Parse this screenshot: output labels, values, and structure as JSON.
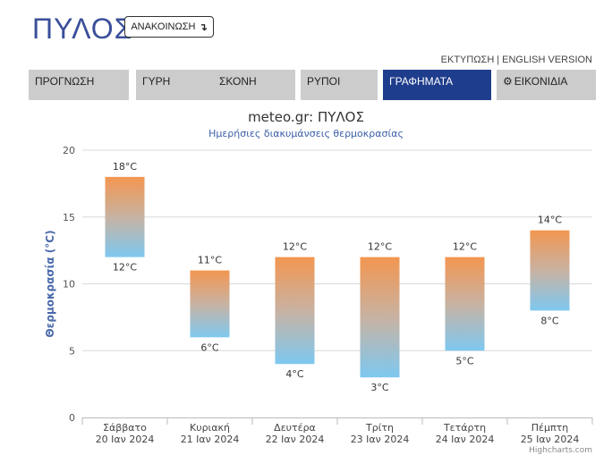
{
  "header": {
    "city": "ΠΥΛΟΣ",
    "announce_label": "ΑΝΑΚΟΙΝΩΣΗ",
    "announce_icon": "arrow-down-icon",
    "print_link": "ΕΚΤΥΠΩΣΗ",
    "separator": "|",
    "english_link": "ENGLISH VERSION"
  },
  "tabs": [
    {
      "label": "ΠΡΟΓΝΩΣΗ",
      "active": false
    },
    {
      "label": "ΓΥΡΗ",
      "active": false
    },
    {
      "label": "ΣΚΟΝΗ",
      "active": false
    },
    {
      "label": "ΡΥΠΟΙ",
      "active": false
    },
    {
      "label": "ΓΡΑΦΗΜΑΤΑ",
      "active": true
    },
    {
      "label": "ΕΙΚΟΝΙΔΙΑ",
      "active": false,
      "icon": "gear-icon"
    }
  ],
  "colors": {
    "accent": "#1e3d8c",
    "tab_bg": "#cccccc",
    "bar_top": "#f39650",
    "bar_bottom": "#7ec8f0"
  },
  "chart_data": {
    "type": "columnrange",
    "title": "meteo.gr: ΠΥΛΟΣ",
    "subtitle": "Ημερήσιες διακυμάνσεις θερμοκρασίας",
    "ylabel": "Θερμοκρασία (°C)",
    "ylim": [
      0,
      20
    ],
    "yticks": [
      "0",
      "5",
      "10",
      "15",
      "20"
    ],
    "grid": true,
    "unit": "°C",
    "categories": [
      {
        "day": "Σάββατο",
        "date": "20 Ιαν 2024"
      },
      {
        "day": "Κυριακή",
        "date": "21 Ιαν 2024"
      },
      {
        "day": "Δευτέρα",
        "date": "22 Ιαν 2024"
      },
      {
        "day": "Τρίτη",
        "date": "23 Ιαν 2024"
      },
      {
        "day": "Τετάρτη",
        "date": "24 Ιαν 2024"
      },
      {
        "day": "Πέμπτη",
        "date": "25 Ιαν 2024"
      }
    ],
    "series": [
      {
        "low": [
          12,
          6,
          4,
          3,
          5,
          8
        ],
        "high": [
          18,
          11,
          12,
          12,
          12,
          14
        ]
      }
    ],
    "credits": "Highcharts.com"
  }
}
